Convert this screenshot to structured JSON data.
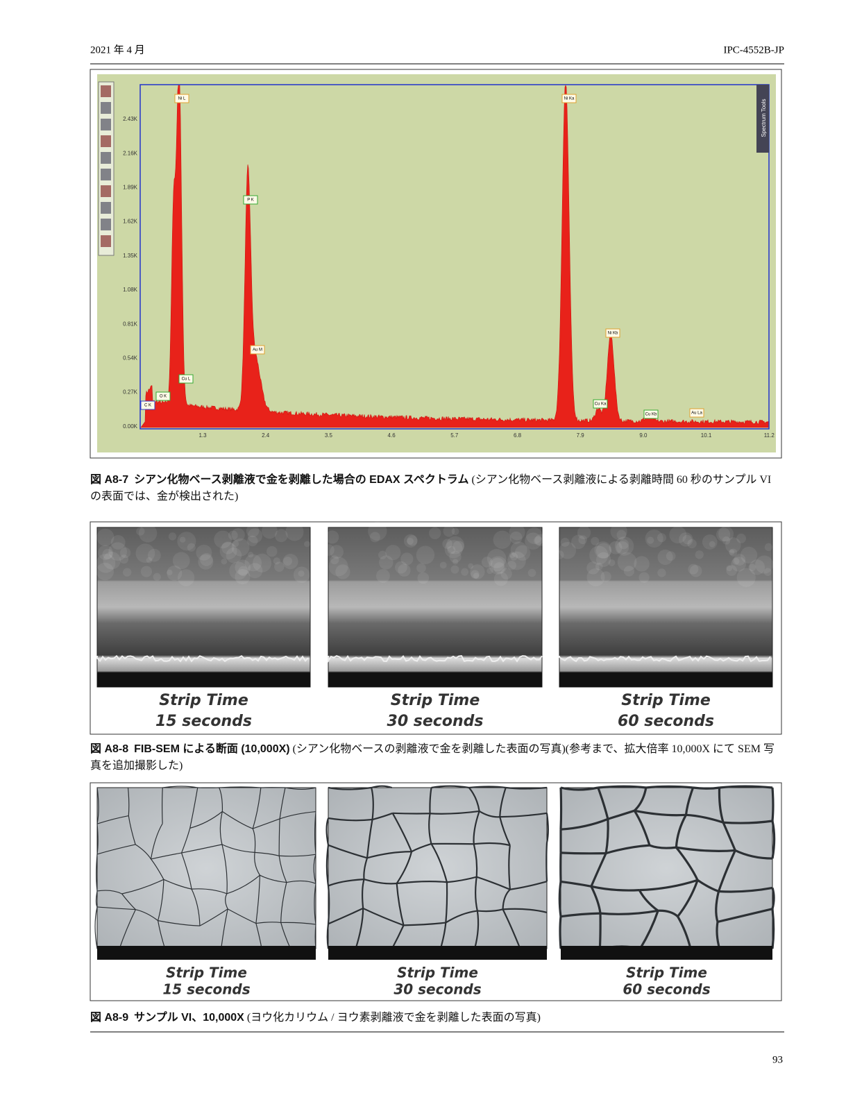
{
  "header": {
    "date": "2021 年 4 月",
    "doc_id": "IPC-4552B-JP"
  },
  "figures": [
    {
      "spectrum": {
        "y_tick_labels": [
          "2.43K",
          "2.16K",
          "1.89K",
          "1.62K",
          "1.35K",
          "1.08K",
          "0.81K",
          "0.54K",
          "0.27K",
          "0.00K"
        ],
        "x_tick_labels": [
          "1.3",
          "2.4",
          "3.5",
          "4.6",
          "5.7",
          "6.8",
          "7.9",
          "9.0",
          "10.1",
          "11.2"
        ],
        "peak_labels": [
          "C K",
          "O K",
          "Cu L",
          "Ni L",
          "P K",
          "Au M",
          "Ni Ka",
          "Ni Kb",
          "Cu Ka",
          "Cu Kb",
          "Au La"
        ],
        "side_tab": "Spectrum Tools"
      },
      "caption": {
        "number": "図 A8-7",
        "title": "シアン化物ベース剥離液で金を剥離した場合の EDAX スペクトラム",
        "note": "(シアン化物ベース剥離液による剥離時間 60 秒のサンプル VI の表面では、金が検出された)"
      }
    },
    {
      "panels": [
        {
          "line1": "Strip Time",
          "line2": "15 seconds"
        },
        {
          "line1": "Strip Time",
          "line2": "30 seconds"
        },
        {
          "line1": "Strip Time",
          "line2": "60 seconds"
        }
      ],
      "caption": {
        "number": "図 A8-8",
        "title": "FIB-SEM による断面 (10,000X)",
        "note": "(シアン化物ベースの剥離液で金を剥離した表面の写真)(参考まで、拡大倍率 10,000X にて SEM 写真を追加撮影した)"
      }
    },
    {
      "panels": [
        {
          "line1": "Strip Time",
          "line2": "15 seconds"
        },
        {
          "line1": "Strip Time",
          "line2": "30 seconds"
        },
        {
          "line1": "Strip Time",
          "line2": "60 seconds"
        }
      ],
      "caption": {
        "number": "図 A8-9",
        "title": "サンプル VI、10,000X",
        "note": "(ヨウ化カリウム / ヨウ素剥離液で金を剥離した表面の写真)"
      }
    }
  ],
  "page_number": "93"
}
